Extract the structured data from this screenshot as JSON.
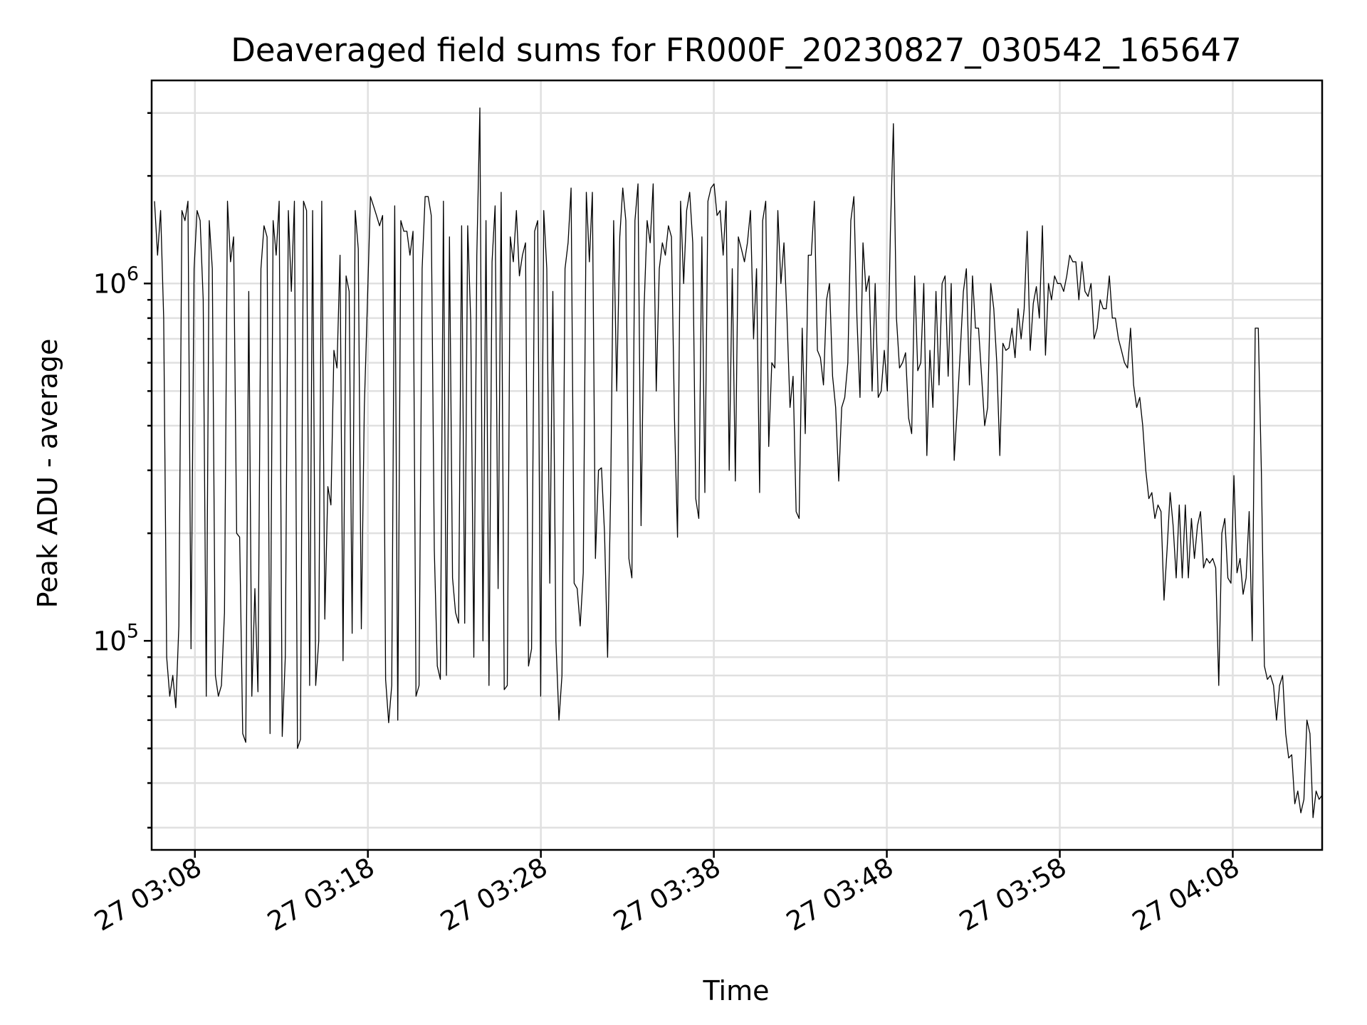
{
  "chart_data": {
    "type": "line",
    "title": "Deaveraged field sums for FR000F_20230827_030542_165647",
    "xlabel": "Time",
    "ylabel": "Peak ADU - average",
    "yscale": "log",
    "ylim": [
      26000,
      3700000
    ],
    "xlim": [
      "27 03:05:30",
      "27 04:13:10"
    ],
    "grid": true,
    "x_tick_labels": [
      "27 03:08",
      "27 03:18",
      "27 03:28",
      "27 03:38",
      "27 03:48",
      "27 03:58",
      "27 04:08"
    ],
    "y_tick_labels": [
      {
        "base": "10",
        "exp": "5",
        "value": 100000
      },
      {
        "base": "10",
        "exp": "6",
        "value": 1000000
      }
    ],
    "series": [
      {
        "color": "#000000",
        "x_start": "27 03:05:40",
        "x_end": "27 04:13:10",
        "values": [
          1700000,
          1200000,
          1600000,
          800000,
          90000,
          70000,
          80000,
          65000,
          110000,
          1600000,
          1500000,
          1700000,
          95000,
          1100000,
          1600000,
          1500000,
          900000,
          70000,
          1500000,
          1100000,
          80000,
          70000,
          75000,
          120000,
          1700000,
          1150000,
          1350000,
          200000,
          195000,
          55000,
          52000,
          950000,
          70000,
          140000,
          72000,
          1100000,
          1450000,
          1350000,
          55000,
          1500000,
          1200000,
          1700000,
          54000,
          90000,
          1600000,
          950000,
          1700000,
          50000,
          53000,
          1700000,
          1600000,
          75000,
          1600000,
          75000,
          100000,
          1700000,
          115000,
          270000,
          240000,
          650000,
          580000,
          1200000,
          88000,
          1050000,
          950000,
          105000,
          1600000,
          1250000,
          108000,
          450000,
          880000,
          1750000,
          1650000,
          1550000,
          1450000,
          1550000,
          78000,
          59000,
          75000,
          1650000,
          60000,
          1500000,
          1400000,
          1400000,
          1200000,
          1400000,
          70000,
          75000,
          1100000,
          1750000,
          1750000,
          1550000,
          180000,
          85000,
          78000,
          1700000,
          80000,
          1350000,
          150000,
          120000,
          112000,
          1450000,
          112000,
          1450000,
          780000,
          90000,
          1200000,
          3100000,
          100000,
          1500000,
          75000,
          1150000,
          1650000,
          140000,
          1800000,
          73000,
          75000,
          1350000,
          1150000,
          1600000,
          1050000,
          1200000,
          1300000,
          85000,
          95000,
          1400000,
          1500000,
          70000,
          1600000,
          1100000,
          145000,
          950000,
          100000,
          60000,
          80000,
          1100000,
          1300000,
          1850000,
          145000,
          140000,
          110000,
          155000,
          1800000,
          1150000,
          1800000,
          170000,
          300000,
          305000,
          200000,
          90000,
          260000,
          1500000,
          500000,
          1350000,
          1850000,
          1500000,
          170000,
          150000,
          1500000,
          1900000,
          210000,
          850000,
          1500000,
          1300000,
          1900000,
          500000,
          1100000,
          1300000,
          1200000,
          1450000,
          1350000,
          420000,
          195000,
          1700000,
          1000000,
          1600000,
          1800000,
          1300000,
          250000,
          220000,
          1350000,
          260000,
          1700000,
          1850000,
          1900000,
          1550000,
          1600000,
          1200000,
          1700000,
          300000,
          1100000,
          280000,
          1350000,
          1250000,
          1150000,
          1300000,
          1600000,
          700000,
          1100000,
          260000,
          1500000,
          1700000,
          350000,
          600000,
          580000,
          1600000,
          1000000,
          1300000,
          800000,
          450000,
          550000,
          230000,
          220000,
          750000,
          380000,
          1200000,
          1200000,
          1700000,
          650000,
          620000,
          520000,
          900000,
          1000000,
          550000,
          450000,
          280000,
          450000,
          480000,
          600000,
          1500000,
          1750000,
          800000,
          480000,
          1300000,
          950000,
          1050000,
          500000,
          1000000,
          480000,
          500000,
          650000,
          500000,
          1400000,
          2800000,
          800000,
          580000,
          600000,
          640000,
          420000,
          380000,
          1050000,
          570000,
          600000,
          1000000,
          330000,
          650000,
          450000,
          950000,
          520000,
          1000000,
          1050000,
          550000,
          1000000,
          320000,
          450000,
          650000,
          950000,
          1100000,
          520000,
          1050000,
          750000,
          750000,
          550000,
          400000,
          450000,
          1000000,
          850000,
          600000,
          330000,
          680000,
          650000,
          660000,
          750000,
          620000,
          850000,
          700000,
          850000,
          1400000,
          650000,
          880000,
          980000,
          800000,
          1450000,
          630000,
          1000000,
          900000,
          1050000,
          1000000,
          1000000,
          950000,
          1050000,
          1200000,
          1150000,
          1150000,
          900000,
          1150000,
          950000,
          920000,
          1000000,
          700000,
          750000,
          900000,
          850000,
          850000,
          1050000,
          800000,
          800000,
          700000,
          650000,
          600000,
          580000,
          750000,
          520000,
          450000,
          480000,
          400000,
          300000,
          250000,
          260000,
          220000,
          240000,
          230000,
          130000,
          180000,
          260000,
          210000,
          150000,
          240000,
          150000,
          240000,
          150000,
          220000,
          170000,
          210000,
          230000,
          160000,
          170000,
          165000,
          170000,
          160000,
          75000,
          200000,
          220000,
          150000,
          145000,
          290000,
          155000,
          170000,
          135000,
          150000,
          230000,
          100000,
          750000,
          750000,
          300000,
          85000,
          78000,
          80000,
          75000,
          60000,
          75000,
          80000,
          55000,
          47000,
          48000,
          35000,
          38000,
          33000,
          36000,
          60000,
          55000,
          32000,
          38000,
          36000,
          37000
        ]
      }
    ]
  }
}
